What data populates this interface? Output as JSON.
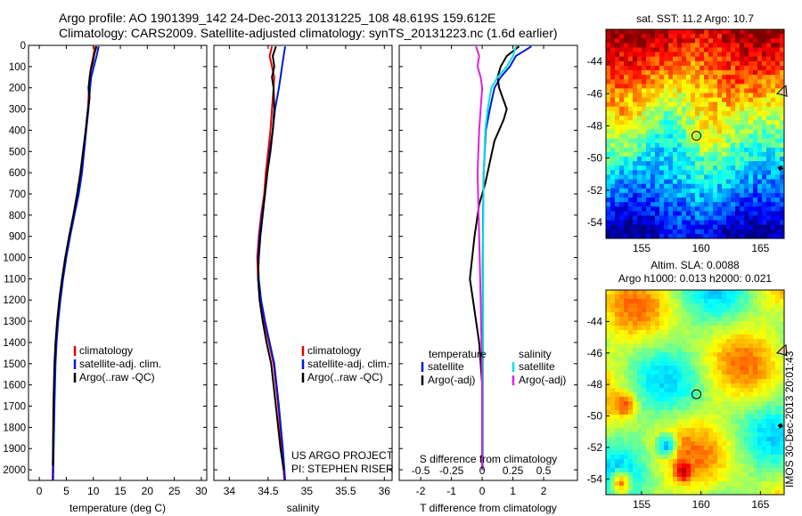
{
  "header": {
    "line1": "Argo profile: AO 1901399_142 24-Dec-2013 20131225_108 48.619S 159.612E",
    "line2": "Climatology: CARS2009. Satellite-adjusted climatology: synTS_20131223.nc (1.6d earlier)"
  },
  "colors": {
    "climatology": "#e00000",
    "satellite": "#0018d8",
    "argo": "#000000",
    "sal_satellite": "#00e0e0",
    "sal_argo": "#e020e0"
  },
  "chart_data": [
    {
      "type": "line",
      "panel": "temperature",
      "xlabel": "temperature (deg C)",
      "ylabel": "",
      "xlim": [
        -2,
        31
      ],
      "ylim": [
        2050,
        0
      ],
      "xticks": [
        "0",
        "5",
        "10",
        "15",
        "20",
        "25",
        "30"
      ],
      "xtick_values": [
        0,
        5,
        10,
        15,
        20,
        25,
        30
      ],
      "yticks": [
        "0",
        "100",
        "200",
        "300",
        "400",
        "500",
        "600",
        "700",
        "800",
        "900",
        "1000",
        "1100",
        "1200",
        "1300",
        "1400",
        "1500",
        "1600",
        "1700",
        "1800",
        "1900",
        "2000"
      ],
      "ytick_values": [
        0,
        100,
        200,
        300,
        400,
        500,
        600,
        700,
        800,
        900,
        1000,
        1100,
        1200,
        1300,
        1400,
        1500,
        1600,
        1700,
        1800,
        1900,
        2000
      ],
      "legend": [
        "climatology",
        "satellite-adj. clim.",
        "Argo(..raw -QC)"
      ],
      "series": [
        {
          "name": "climatology",
          "color_key": "climatology",
          "x": [
            10.3,
            10.0,
            9.6,
            9.3,
            9.2,
            9.0,
            8.6,
            8.2,
            7.8,
            7.2,
            6.4,
            5.6,
            4.9,
            4.3,
            3.8,
            3.4,
            3.1,
            2.9,
            2.7,
            2.55,
            2.45
          ],
          "y": [
            5,
            50,
            100,
            150,
            200,
            300,
            400,
            500,
            600,
            700,
            800,
            900,
            1000,
            1100,
            1200,
            1300,
            1400,
            1500,
            1700,
            1900,
            2050
          ]
        },
        {
          "name": "satellite-adj. clim.",
          "color_key": "satellite",
          "x": [
            11.0,
            10.6,
            10.1,
            9.6,
            9.4,
            9.1,
            8.7,
            8.3,
            7.9,
            7.3,
            6.5,
            5.7,
            5.0,
            4.4,
            3.9,
            3.5,
            3.2,
            3.0,
            2.8,
            2.65,
            2.55
          ],
          "y": [
            5,
            50,
            100,
            150,
            200,
            300,
            400,
            500,
            600,
            700,
            800,
            900,
            1000,
            1100,
            1200,
            1300,
            1400,
            1500,
            1700,
            1900,
            2050
          ]
        },
        {
          "name": "Argo(..raw -QC)",
          "color_key": "argo",
          "x": [
            10.6,
            10.2,
            9.9,
            9.5,
            9.3,
            9.1,
            9.3,
            9.0,
            8.6,
            8.1,
            7.6,
            7.0,
            6.3,
            5.5,
            4.8,
            4.2,
            3.7,
            3.3,
            3.0,
            2.8,
            2.6,
            2.5
          ],
          "y": [
            5,
            40,
            80,
            120,
            160,
            200,
            250,
            300,
            400,
            500,
            600,
            700,
            800,
            900,
            1000,
            1100,
            1200,
            1300,
            1400,
            1500,
            1700,
            1980
          ]
        }
      ]
    },
    {
      "type": "line",
      "panel": "salinity",
      "xlabel": "salinity",
      "ylabel": "",
      "xlim": [
        33.8,
        36.1
      ],
      "ylim": [
        2050,
        0
      ],
      "xticks": [
        "34",
        "34.5",
        "35",
        "35.5",
        "36"
      ],
      "xtick_values": [
        34,
        34.5,
        35,
        35.5,
        36
      ],
      "legend": [
        "climatology",
        "satellite-adj. clim.",
        "Argo(..raw -QC)"
      ],
      "annotations": [
        "US ARGO PROJECT",
        "PI: STEPHEN RISER"
      ],
      "series": [
        {
          "name": "climatology",
          "color_key": "climatology",
          "x": [
            34.55,
            34.52,
            34.55,
            34.58,
            34.57,
            34.55,
            34.53,
            34.5,
            34.47,
            34.45,
            34.41,
            34.38,
            34.36,
            34.37,
            34.4,
            34.45,
            34.51,
            34.57,
            34.63,
            34.68,
            34.71
          ],
          "y": [
            5,
            50,
            100,
            150,
            200,
            300,
            400,
            500,
            600,
            700,
            800,
            900,
            1000,
            1100,
            1200,
            1300,
            1400,
            1500,
            1700,
            1900,
            2050
          ]
        },
        {
          "name": "satellite-adj. clim.",
          "color_key": "satellite",
          "x": [
            34.72,
            34.7,
            34.68,
            34.66,
            34.64,
            34.59,
            34.56,
            34.52,
            34.49,
            34.46,
            34.42,
            34.39,
            34.37,
            34.38,
            34.41,
            34.46,
            34.52,
            34.58,
            34.64,
            34.69,
            34.72
          ],
          "y": [
            5,
            50,
            100,
            150,
            200,
            300,
            400,
            500,
            600,
            700,
            800,
            900,
            1000,
            1100,
            1200,
            1300,
            1400,
            1500,
            1700,
            1900,
            2050
          ]
        },
        {
          "name": "Argo(..raw -QC)",
          "color_key": "argo",
          "x": [
            34.6,
            34.56,
            34.58,
            34.55,
            34.57,
            34.58,
            34.56,
            34.53,
            34.49,
            34.46,
            34.43,
            34.4,
            34.38,
            34.37,
            34.39,
            34.43,
            34.48,
            34.54,
            34.6,
            34.66,
            34.7
          ],
          "y": [
            5,
            50,
            100,
            150,
            200,
            300,
            400,
            500,
            600,
            700,
            800,
            900,
            1000,
            1100,
            1200,
            1300,
            1400,
            1500,
            1700,
            1900,
            2000
          ]
        }
      ]
    },
    {
      "type": "line",
      "panel": "difference",
      "xlabel": "T difference from climatology",
      "xlabel_top": "S difference from climatology",
      "xlim": [
        -2.7,
        3.1
      ],
      "ylim": [
        2050,
        0
      ],
      "xticks": [
        "-2",
        "-1",
        "0",
        "1",
        "2"
      ],
      "xtick_values": [
        -2,
        -1,
        0,
        1,
        2
      ],
      "xticks_top": [
        "-0.5",
        "-0.25",
        "0",
        "0.25",
        "0.5"
      ],
      "xtick_top_values": [
        -0.5,
        -0.25,
        0,
        0.25,
        0.5
      ],
      "legend_titles": [
        "temperature",
        "salinity"
      ],
      "legend": [
        "satellite",
        "Argo(-adj)",
        "satellite",
        "Argo(-adj)"
      ],
      "series": [
        {
          "name": "satellite",
          "group": "temperature",
          "color_key": "satellite",
          "x": [
            1.6,
            1.1,
            0.9,
            0.6,
            0.4,
            0.25,
            0.12,
            0.05,
            0.03,
            0.02,
            0.02,
            0.02
          ],
          "y": [
            5,
            50,
            100,
            150,
            200,
            300,
            400,
            600,
            800,
            1000,
            1500,
            2000
          ]
        },
        {
          "name": "Argo(-adj)",
          "group": "temperature",
          "color_key": "argo",
          "x": [
            1.2,
            0.8,
            0.6,
            0.5,
            0.55,
            0.8,
            0.7,
            0.4,
            0.25,
            0.1,
            -0.1,
            -0.25,
            -0.4,
            -0.3,
            -0.1,
            0.0,
            0.0
          ],
          "y": [
            5,
            50,
            100,
            150,
            200,
            300,
            350,
            450,
            550,
            650,
            750,
            900,
            1100,
            1200,
            1400,
            1600,
            2000
          ]
        },
        {
          "name": "satellite",
          "group": "salinity",
          "color_key": "sal_satellite",
          "x": [
            1.1,
            1.0,
            0.8,
            0.5,
            0.3,
            0.18,
            0.1,
            0.05,
            0.03,
            0.03,
            0.02
          ],
          "y": [
            5,
            50,
            100,
            150,
            200,
            300,
            400,
            600,
            900,
            1400,
            2000
          ]
        },
        {
          "name": "Argo(-adj)",
          "group": "salinity",
          "color_key": "sal_argo",
          "x": [
            -0.2,
            -0.1,
            -0.15,
            -0.05,
            0.0,
            -0.05,
            -0.1,
            -0.15,
            -0.1,
            -0.05,
            0.0,
            0.0
          ],
          "y": [
            5,
            50,
            100,
            150,
            200,
            300,
            400,
            600,
            900,
            1200,
            1600,
            2000
          ]
        }
      ]
    },
    {
      "type": "heatmap",
      "panel": "sst",
      "title": "sat. SST: 11.2  Argo: 10.7",
      "xlim": [
        152,
        167
      ],
      "ylim": [
        -55,
        -42
      ],
      "xticks": [
        "155",
        "160",
        "165"
      ],
      "xtick_values": [
        155,
        160,
        165
      ],
      "yticks": [
        "-44",
        "-46",
        "-48",
        "-50",
        "-52",
        "-54"
      ],
      "ytick_values": [
        -44,
        -46,
        -48,
        -50,
        -52,
        -54
      ],
      "marker": {
        "lon": 159.612,
        "lat": -48.619
      }
    },
    {
      "type": "heatmap",
      "panel": "sla",
      "title": "Altim. SLA: 0.0088",
      "subtitle": "Argo h1000: 0.013 h2000: 0.021",
      "xlim": [
        152,
        167
      ],
      "ylim": [
        -55,
        -42
      ],
      "xticks": [
        "155",
        "160",
        "165"
      ],
      "xtick_values": [
        155,
        160,
        165
      ],
      "yticks": [
        "-44",
        "-46",
        "-48",
        "-50",
        "-52",
        "-54"
      ],
      "ytick_values": [
        -44,
        -46,
        -48,
        -50,
        -52,
        -54
      ],
      "marker": {
        "lon": 159.612,
        "lat": -48.619
      },
      "side_label": "IMOS 30-Dec-2013 20:01:43"
    }
  ]
}
